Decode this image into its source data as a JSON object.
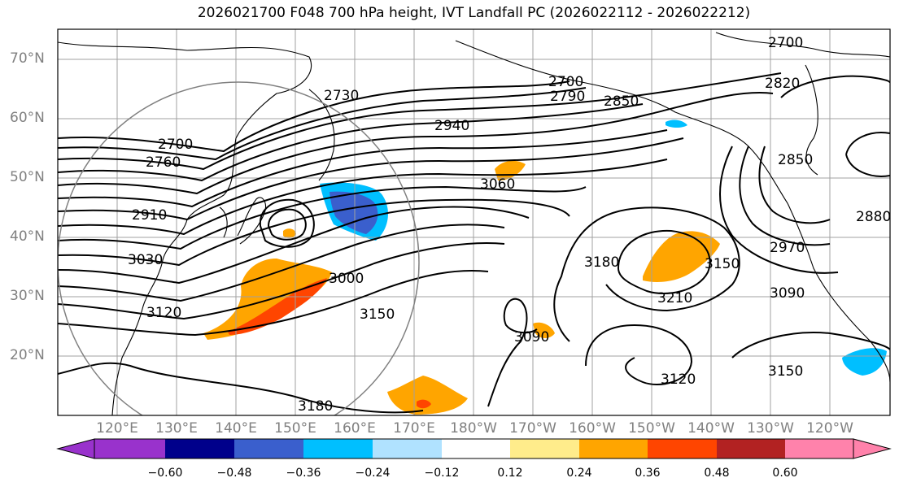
{
  "title": "2026021700 F048 700 hPa height, IVT Landfall PC (2026022112 - 2026022212)",
  "map": {
    "projection": "PlateCarree",
    "lon_range": [
      110,
      250
    ],
    "lat_range": [
      10,
      75
    ],
    "latitude_labels": [
      "70°N",
      "60°N",
      "50°N",
      "40°N",
      "30°N",
      "20°N"
    ],
    "longitude_labels": [
      "120°E",
      "130°E",
      "140°E",
      "150°E",
      "160°E",
      "170°E",
      "180°W",
      "170°W",
      "160°W",
      "150°W",
      "140°W",
      "130°W",
      "120°W"
    ],
    "contour_labels": [
      "2700",
      "2760",
      "2910",
      "3030",
      "3120",
      "2730",
      "2940",
      "2700",
      "2790",
      "2850",
      "2820",
      "2700",
      "3060",
      "3000",
      "3150",
      "3180",
      "3180",
      "3090",
      "3210",
      "3150",
      "2850",
      "2970",
      "3090",
      "3150",
      "3120",
      "2880"
    ]
  },
  "colorbar": {
    "ticks": [
      "−0.60",
      "−0.48",
      "−0.36",
      "−0.24",
      "−0.12",
      "0.12",
      "0.24",
      "0.36",
      "0.48",
      "0.60"
    ],
    "colors": [
      "#9932CC",
      "#00008B",
      "#3A5FCD",
      "#00BFFF",
      "#B0E2FF",
      "#FFFFFF",
      "#FFEC8B",
      "#FFA500",
      "#FF4500",
      "#B22222",
      "#FF82AB"
    ]
  }
}
